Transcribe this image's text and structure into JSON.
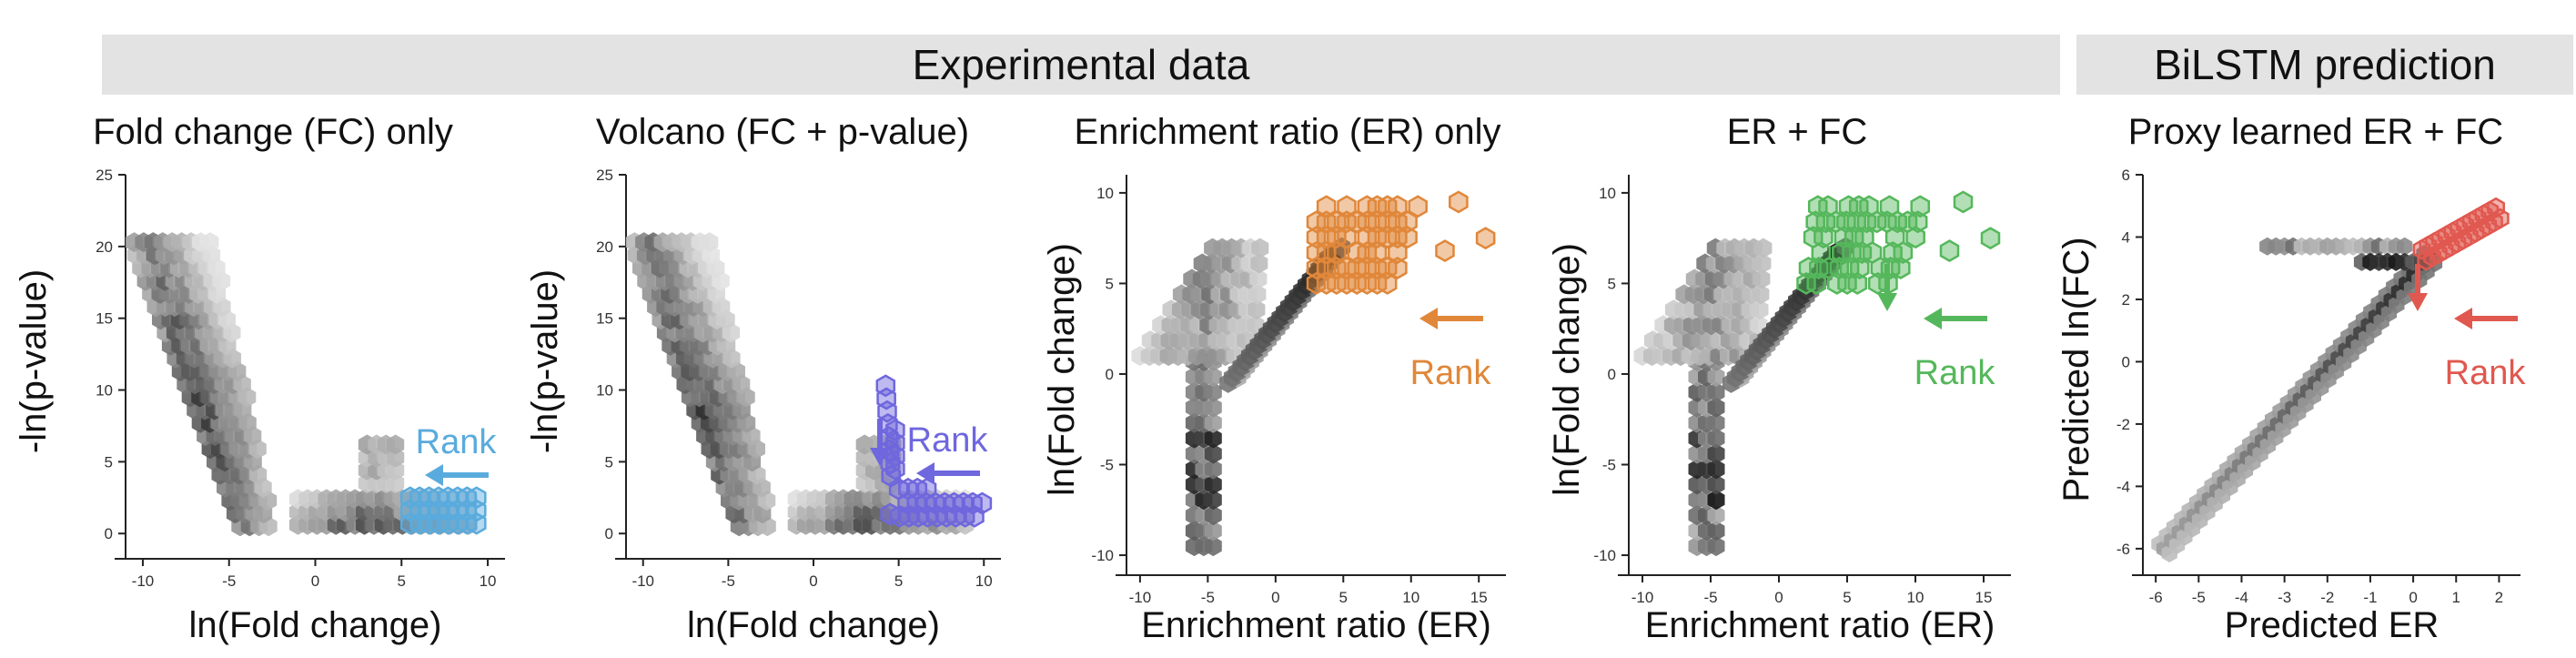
{
  "banners": {
    "experimental": "Experimental data",
    "bilstm": "BiLSTM prediction"
  },
  "rank_label": "Rank",
  "colors": {
    "blue": "#5aabdd",
    "purple": "#6f67dd",
    "orange": "#e0873a",
    "green": "#55b75b",
    "red": "#e0584f",
    "gray_dark": "#111111"
  },
  "chart_data": [
    {
      "id": "fc-only",
      "type": "scatter",
      "title": "Fold change (FC) only",
      "xlabel": "ln(Fold change)",
      "ylabel": "-ln(p-value)",
      "xlim": [
        -11,
        11
      ],
      "ylim": [
        -1,
        25
      ],
      "xticks": [
        -10,
        -5,
        0,
        5,
        10
      ],
      "yticks": [
        0,
        5,
        10,
        15,
        20,
        25
      ],
      "highlight_color": "blue",
      "highlight_region": {
        "x": [
          5.5,
          10
        ],
        "y": [
          0.5,
          3
        ]
      },
      "rank_arrow": "left"
    },
    {
      "id": "volcano",
      "type": "scatter",
      "title": "Volcano (FC + p-value)",
      "xlabel": "ln(Fold change)",
      "ylabel": "-ln(p-value)",
      "xlim": [
        -11,
        11
      ],
      "ylim": [
        -1,
        25
      ],
      "xticks": [
        -10,
        -5,
        0,
        5,
        10
      ],
      "yticks": [
        0,
        5,
        10,
        15,
        20,
        25
      ],
      "highlight_color": "purple",
      "highlight_region": {
        "x": [
          4,
          10
        ],
        "y": [
          1,
          11
        ]
      },
      "rank_arrow": "left-down"
    },
    {
      "id": "er-only",
      "type": "scatter",
      "title": "Enrichment ratio (ER) only",
      "xlabel": "Enrichment ratio (ER)",
      "ylabel": "ln(Fold change)",
      "xlim": [
        -11,
        17
      ],
      "ylim": [
        -10.5,
        11
      ],
      "xticks": [
        -10,
        -5,
        0,
        5,
        10,
        15
      ],
      "yticks": [
        -10,
        -5,
        0,
        5,
        10
      ],
      "highlight_color": "orange",
      "highlight_region": {
        "x": [
          3,
          15
        ],
        "y": [
          5,
          10
        ]
      },
      "rank_arrow": "left"
    },
    {
      "id": "er-fc",
      "type": "scatter",
      "title": "ER + FC",
      "xlabel": "Enrichment ratio (ER)",
      "ylabel": "ln(Fold change)",
      "xlim": [
        -11,
        17
      ],
      "ylim": [
        -10.5,
        11
      ],
      "xticks": [
        -10,
        -5,
        0,
        5,
        10,
        15
      ],
      "yticks": [
        -10,
        -5,
        0,
        5,
        10
      ],
      "highlight_color": "green",
      "highlight_region": {
        "x": [
          0,
          15
        ],
        "y": [
          6,
          10
        ]
      },
      "rank_arrow": "left-down"
    },
    {
      "id": "proxy",
      "type": "scatter",
      "title": "Proxy learned ER + FC",
      "xlabel": "Predicted ER",
      "ylabel": "Predicted ln(FC)",
      "xlim": [
        -6.3,
        2.5
      ],
      "ylim": [
        -6.5,
        6
      ],
      "xticks": [
        -6,
        -5,
        -4,
        -3,
        -2,
        -1,
        0,
        1,
        2
      ],
      "yticks": [
        -6,
        -4,
        -2,
        0,
        2,
        4,
        6
      ],
      "highlight_color": "red",
      "highlight_region": {
        "x": [
          0,
          2
        ],
        "y": [
          3.5,
          5.2
        ]
      },
      "rank_arrow": "left-down"
    }
  ]
}
